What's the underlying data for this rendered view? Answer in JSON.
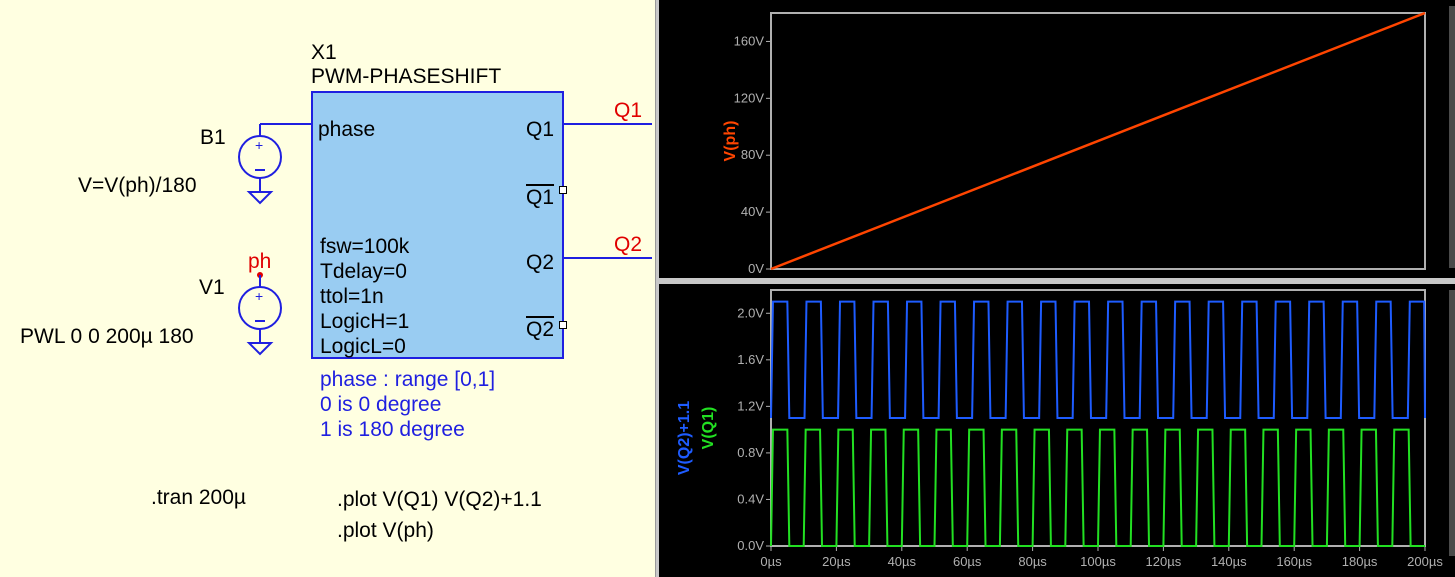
{
  "schematic": {
    "block_ref": "X1",
    "block_name": "PWM-PHASESHIFT",
    "pins": {
      "phase": "phase",
      "q1": "Q1",
      "q1bar": "Q1",
      "q2": "Q2",
      "q2bar": "Q2"
    },
    "params": [
      "fsw=100k",
      "Tdelay=0",
      "ttol=1n",
      "LogicH=1",
      "LogicL=0"
    ],
    "notes": [
      "phase : range [0,1]",
      "0 is 0 degree",
      "1 is 180 degree"
    ],
    "net_labels": {
      "q1": "Q1",
      "q2": "Q2",
      "ph": "ph"
    },
    "b1": {
      "name": "B1",
      "value": "V=V(ph)/180"
    },
    "v1": {
      "name": "V1",
      "value": "PWL 0 0 200µ 180"
    },
    "directives": [
      ".tran 200µ",
      ".plot V(Q1) V(Q2)+1.1",
      ".plot V(ph)"
    ],
    "colors": {
      "wire": "#1f1fe0",
      "block_fill": "#99ccf2",
      "net_label": "#e00000",
      "background": "#ffffe1"
    }
  },
  "chart_data": [
    {
      "type": "line",
      "x_unit": "µs",
      "xlim": [
        0,
        200
      ],
      "ylim": [
        0,
        180
      ],
      "yticks": [
        "0V",
        "40V",
        "80V",
        "120V",
        "160V"
      ],
      "ytick_values": [
        0,
        40,
        80,
        120,
        160
      ],
      "series": [
        {
          "name": "V(ph)",
          "color": "#ff4500",
          "x": [
            0,
            200
          ],
          "y": [
            0,
            180
          ]
        }
      ]
    },
    {
      "type": "line",
      "x_unit": "µs",
      "xlim": [
        0,
        200
      ],
      "ylim": [
        0,
        2.2
      ],
      "yticks": [
        "0.0V",
        "0.4V",
        "0.8V",
        "1.2V",
        "1.6V",
        "2.0V"
      ],
      "ytick_values": [
        0,
        0.4,
        0.8,
        1.2,
        1.6,
        2.0
      ],
      "xticks": [
        "0µs",
        "20µs",
        "40µs",
        "60µs",
        "80µs",
        "100µs",
        "120µs",
        "140µs",
        "160µs",
        "180µs",
        "200µs"
      ],
      "xtick_values": [
        0,
        20,
        40,
        60,
        80,
        100,
        120,
        140,
        160,
        180,
        200
      ],
      "series": [
        {
          "name": "V(Q2)+1.1",
          "color": "#1e5cff",
          "kind": "pwm",
          "period_us": 10,
          "duty": 0.5,
          "low": 1.1,
          "high": 2.1,
          "phase_shift_deg": {
            "start": 0,
            "end": 180
          }
        },
        {
          "name": "V(Q1)",
          "color": "#22e022",
          "kind": "pwm",
          "period_us": 10,
          "duty": 0.5,
          "low": 0,
          "high": 1.0
        }
      ]
    }
  ]
}
